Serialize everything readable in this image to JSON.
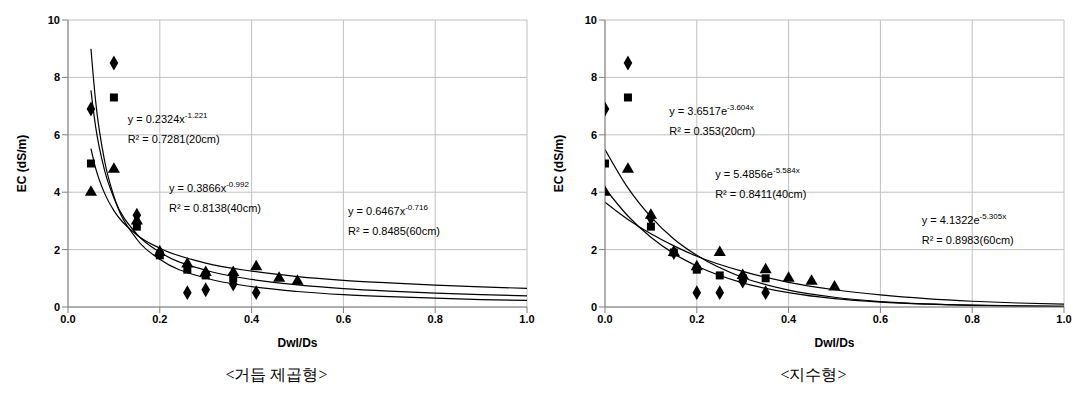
{
  "chart_data": [
    {
      "type": "scatter",
      "title": "<거듭 제곱형>",
      "x_label": "Dwl/Ds",
      "y_label": "EC (dS/m)",
      "xlim": [
        0,
        1
      ],
      "ylim": [
        0,
        10
      ],
      "xticks": [
        {
          "value": 0,
          "label": "0.0"
        },
        0.2,
        0.4,
        0.6,
        0.8,
        {
          "value": 1,
          "label": "1.0"
        }
      ],
      "yticks": [
        0,
        2,
        4,
        6,
        8,
        10
      ],
      "grid": true,
      "series": [
        {
          "type": "scatter",
          "marker": "diamond",
          "color": "#000000",
          "x": [
            0.05,
            0.1,
            0.15,
            0.2,
            0.26,
            0.3,
            0.36,
            0.41
          ],
          "values": [
            6.9,
            8.5,
            3.2,
            1.9,
            0.5,
            0.6,
            0.8,
            0.5
          ]
        },
        {
          "type": "scatter",
          "marker": "square",
          "color": "#000000",
          "x": [
            0.05,
            0.1,
            0.15,
            0.2,
            0.26,
            0.3,
            0.36
          ],
          "values": [
            5.0,
            7.3,
            2.8,
            1.8,
            1.3,
            1.1,
            1.0
          ]
        },
        {
          "type": "scatter",
          "marker": "triangle",
          "color": "#000000",
          "x": [
            0.05,
            0.1,
            0.15,
            0.2,
            0.26,
            0.3,
            0.36,
            0.41,
            0.46,
            0.5
          ],
          "values": [
            4.0,
            4.8,
            3.0,
            1.9,
            1.5,
            1.2,
            1.2,
            1.4,
            1.0,
            0.9
          ]
        },
        {
          "type": "line",
          "line_style": "solid",
          "color": "#000000",
          "x": [
            0.05,
            0.06,
            0.08,
            0.1,
            0.15,
            0.2,
            0.3,
            0.4,
            0.5,
            0.6,
            0.7,
            0.8,
            0.9,
            1.0
          ],
          "values": [
            9.0,
            7.2,
            5.07,
            3.86,
            2.36,
            1.66,
            1.01,
            0.71,
            0.54,
            0.43,
            0.36,
            0.31,
            0.26,
            0.23
          ]
        },
        {
          "type": "line",
          "line_style": "solid",
          "color": "#000000",
          "x": [
            0.05,
            0.06,
            0.08,
            0.1,
            0.15,
            0.2,
            0.3,
            0.4,
            0.5,
            0.6,
            0.7,
            0.8,
            0.9,
            1.0
          ],
          "values": [
            7.55,
            6.3,
            4.74,
            3.8,
            2.54,
            1.91,
            1.28,
            0.96,
            0.77,
            0.64,
            0.55,
            0.48,
            0.43,
            0.39
          ]
        },
        {
          "type": "line",
          "line_style": "solid",
          "color": "#000000",
          "x": [
            0.05,
            0.06,
            0.08,
            0.1,
            0.15,
            0.2,
            0.3,
            0.4,
            0.5,
            0.6,
            0.7,
            0.8,
            0.9,
            1.0
          ],
          "values": [
            5.52,
            4.85,
            3.95,
            3.36,
            2.51,
            2.05,
            1.53,
            1.25,
            1.06,
            0.93,
            0.84,
            0.76,
            0.7,
            0.65
          ]
        }
      ],
      "annotations": [
        {
          "text": "y = 0.2324x",
          "superscript": "-1.221",
          "x": 0.13,
          "y": 6.4
        },
        {
          "text": "R² = 0.7281(20cm)",
          "x": 0.13,
          "y": 5.7
        },
        {
          "text": "y = 0.3866x",
          "superscript": "-0.992",
          "x": 0.22,
          "y": 4.0
        },
        {
          "text": "R² = 0.8138(40cm)",
          "x": 0.22,
          "y": 3.3
        },
        {
          "text": "y = 0.6467x",
          "superscript": "-0.716",
          "x": 0.61,
          "y": 3.2
        },
        {
          "text": "R² = 0.8485(60cm)",
          "x": 0.61,
          "y": 2.5
        }
      ]
    },
    {
      "type": "scatter",
      "title": "<지수형>",
      "x_label": "Dwl/Ds",
      "y_label": "EC (dS/m)",
      "xlim": [
        0,
        1
      ],
      "ylim": [
        0,
        10
      ],
      "xticks": [
        {
          "value": 0,
          "label": "0.0"
        },
        0.2,
        0.4,
        0.6,
        0.8,
        {
          "value": 1,
          "label": "1.0"
        }
      ],
      "yticks": [
        0,
        2,
        4,
        6,
        8,
        10
      ],
      "grid": true,
      "series": [
        {
          "type": "scatter",
          "marker": "diamond",
          "color": "#000000",
          "x": [
            0,
            0.05,
            0.1,
            0.15,
            0.2,
            0.25,
            0.3,
            0.35
          ],
          "values": [
            6.9,
            8.5,
            3.1,
            1.9,
            0.5,
            0.5,
            0.9,
            0.5
          ]
        },
        {
          "type": "scatter",
          "marker": "square",
          "color": "#000000",
          "x": [
            0,
            0.05,
            0.1,
            0.15,
            0.2,
            0.25,
            0.3,
            0.35
          ],
          "values": [
            5.0,
            7.3,
            2.8,
            1.9,
            1.3,
            1.1,
            1.0,
            1.0
          ]
        },
        {
          "type": "scatter",
          "marker": "triangle",
          "color": "#000000",
          "x": [
            0,
            0.05,
            0.1,
            0.15,
            0.2,
            0.25,
            0.3,
            0.35,
            0.4,
            0.45,
            0.5
          ],
          "values": [
            4.0,
            4.8,
            3.2,
            1.9,
            1.4,
            1.9,
            1.1,
            1.3,
            1.0,
            0.9,
            0.7
          ]
        },
        {
          "type": "line",
          "line_style": "solid",
          "color": "#000000",
          "x": [
            0,
            0.05,
            0.1,
            0.15,
            0.2,
            0.3,
            0.4,
            0.5,
            0.6,
            0.7,
            0.8,
            0.9,
            1.0
          ],
          "values": [
            3.65,
            3.05,
            2.55,
            2.13,
            1.77,
            1.24,
            0.86,
            0.6,
            0.42,
            0.29,
            0.2,
            0.14,
            0.1
          ]
        },
        {
          "type": "line",
          "line_style": "solid",
          "color": "#000000",
          "x": [
            0,
            0.05,
            0.1,
            0.15,
            0.2,
            0.3,
            0.4,
            0.5,
            0.6,
            0.7,
            0.8,
            0.9,
            1.0
          ],
          "values": [
            5.49,
            4.15,
            3.14,
            2.37,
            1.8,
            1.03,
            0.59,
            0.34,
            0.19,
            0.11,
            0.063,
            0.036,
            0.021
          ]
        },
        {
          "type": "line",
          "line_style": "solid",
          "color": "#000000",
          "x": [
            0,
            0.05,
            0.1,
            0.15,
            0.2,
            0.3,
            0.4,
            0.5,
            0.6,
            0.7,
            0.8,
            0.9,
            1.0
          ],
          "values": [
            4.13,
            3.17,
            2.43,
            1.86,
            1.43,
            0.84,
            0.5,
            0.29,
            0.17,
            0.1,
            0.059,
            0.035,
            0.021
          ]
        }
      ],
      "annotations": [
        {
          "text": "y = 3.6517e",
          "superscript": "-3.604x",
          "x": 0.14,
          "y": 6.7
        },
        {
          "text": "R² = 0.353(20cm)",
          "x": 0.14,
          "y": 6.0
        },
        {
          "text": "y = 5.4856e",
          "superscript": "-5.584x",
          "x": 0.24,
          "y": 4.5
        },
        {
          "text": "R² = 0.8411(40cm)",
          "x": 0.24,
          "y": 3.8
        },
        {
          "text": "y = 4.1322e",
          "superscript": "-5.305x",
          "x": 0.69,
          "y": 2.9
        },
        {
          "text": "R² = 0.8983(60cm)",
          "x": 0.69,
          "y": 2.2
        }
      ]
    }
  ]
}
